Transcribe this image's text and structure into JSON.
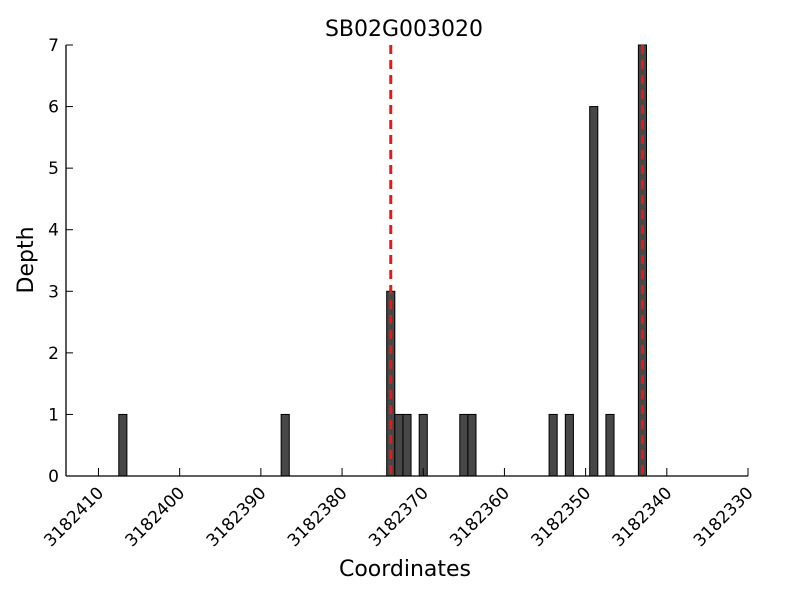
{
  "chart_data": {
    "type": "bar",
    "title": "SB02G003020",
    "xlabel": "Coordinates",
    "ylabel": "Depth",
    "x_reversed": true,
    "xlim": [
      3182414,
      3182330
    ],
    "ylim": [
      0,
      7
    ],
    "xticks": [
      3182410,
      3182400,
      3182390,
      3182380,
      3182370,
      3182360,
      3182350,
      3182340,
      3182330
    ],
    "yticks": [
      0,
      1,
      2,
      3,
      4,
      5,
      6,
      7
    ],
    "grid": false,
    "bars": [
      {
        "x": 3182407,
        "value": 1
      },
      {
        "x": 3182387,
        "value": 1
      },
      {
        "x": 3182374,
        "value": 3
      },
      {
        "x": 3182373,
        "value": 1
      },
      {
        "x": 3182372,
        "value": 1
      },
      {
        "x": 3182370,
        "value": 1
      },
      {
        "x": 3182365,
        "value": 1
      },
      {
        "x": 3182364,
        "value": 1
      },
      {
        "x": 3182354,
        "value": 1
      },
      {
        "x": 3182352,
        "value": 1
      },
      {
        "x": 3182349,
        "value": 6
      },
      {
        "x": 3182347,
        "value": 1
      },
      {
        "x": 3182343,
        "value": 7
      }
    ],
    "reference_lines": [
      {
        "x": 3182374,
        "color": "#e31a1c",
        "style": "dashed"
      },
      {
        "x": 3182343,
        "color": "#e31a1c",
        "style": "dashed"
      }
    ],
    "bar_color": "#474747"
  }
}
